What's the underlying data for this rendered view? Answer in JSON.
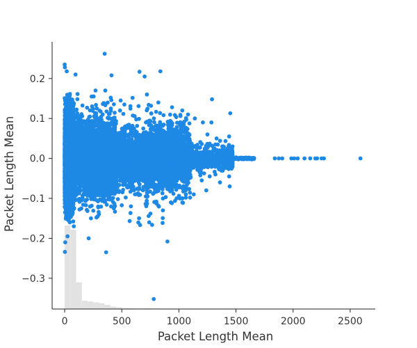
{
  "chart_data": {
    "type": "scatter",
    "title": "",
    "xlabel": "Packet Length Mean",
    "ylabel": "Packet Length Mean",
    "xlim": [
      -110,
      2720
    ],
    "ylim": [
      -0.377,
      0.292
    ],
    "x_ticks": [
      0,
      500,
      1000,
      1500,
      2000,
      2500
    ],
    "x_tick_labels": [
      "0",
      "500",
      "1000",
      "1500",
      "2000",
      "2500"
    ],
    "y_ticks": [
      0.2,
      0.1,
      0.0,
      -0.1,
      -0.2,
      -0.3
    ],
    "y_tick_labels": [
      "0.2",
      "0.1",
      "0.0",
      "−0.1",
      "−0.2",
      "−0.3"
    ],
    "grid": false,
    "legend": "none",
    "point_color": "#1E88E5",
    "histogram_color": "#E2E2E2",
    "histogram": {
      "bin_edges": [
        0,
        50,
        100,
        150,
        200,
        250,
        300,
        350,
        400,
        450,
        500,
        550,
        600,
        650,
        700,
        750,
        800,
        850,
        900,
        950,
        1000,
        1050,
        1100,
        1150,
        1200,
        1250,
        1300,
        1350,
        1400,
        1450,
        1500
      ],
      "relative_heights": [
        1.0,
        0.95,
        0.32,
        0.1,
        0.09,
        0.08,
        0.07,
        0.05,
        0.03,
        0.02,
        0.012,
        0.01,
        0.008,
        0.008,
        0.01,
        0.008,
        0.008,
        0.006,
        0.005,
        0.004,
        0.004,
        0.003,
        0.003,
        0.003,
        0.002,
        0.002,
        0.002,
        0.002,
        0.003,
        0.002
      ]
    },
    "series": [
      {
        "values": [
          [
            0,
            0.235
          ],
          [
            2,
            0.228
          ],
          [
            18,
            0.218
          ],
          [
            95,
            0.21
          ],
          [
            350,
            0.262
          ],
          [
            410,
            0.208
          ],
          [
            655,
            0.217
          ],
          [
            700,
            0.205
          ],
          [
            838,
            0.218
          ],
          [
            270,
            0.17
          ],
          [
            490,
            0.145
          ],
          [
            720,
            0.16
          ],
          [
            820,
            0.14
          ],
          [
            940,
            0.128
          ],
          [
            1030,
            0.12
          ],
          [
            1080,
            0.11
          ],
          [
            1140,
            0.1
          ],
          [
            1210,
            0.09
          ],
          [
            1290,
            0.148
          ],
          [
            1450,
            0.113
          ],
          [
            1285,
            0.09
          ],
          [
            1330,
            0.05
          ],
          [
            1440,
            0.055
          ],
          [
            1470,
            0.03
          ],
          [
            1250,
            0.06
          ],
          [
            1355,
            0.02
          ],
          [
            1380,
            0.03
          ],
          [
            1320,
            0.035
          ],
          [
            1410,
            0.015
          ],
          [
            1460,
            -0.02
          ],
          [
            1405,
            -0.02
          ],
          [
            1270,
            -0.045
          ],
          [
            1320,
            -0.04
          ],
          [
            1440,
            -0.045
          ],
          [
            1445,
            -0.07
          ],
          [
            1360,
            -0.06
          ],
          [
            1240,
            -0.08
          ],
          [
            1200,
            -0.055
          ],
          [
            1130,
            -0.09
          ],
          [
            1060,
            -0.08
          ],
          [
            980,
            -0.1
          ],
          [
            930,
            -0.11
          ],
          [
            860,
            -0.13
          ],
          [
            740,
            -0.16
          ],
          [
            580,
            -0.12
          ],
          [
            430,
            -0.125
          ],
          [
            300,
            -0.14
          ],
          [
            230,
            -0.15
          ],
          [
            210,
            -0.2
          ],
          [
            25,
            -0.195
          ],
          [
            5,
            -0.21
          ],
          [
            2,
            -0.234
          ],
          [
            80,
            -0.17
          ],
          [
            45,
            -0.16
          ],
          [
            363,
            -0.235
          ],
          [
            900,
            -0.208
          ],
          [
            780,
            -0.352
          ],
          [
            1840,
            0.0
          ],
          [
            1875,
            0.0
          ],
          [
            1905,
            0.0
          ],
          [
            1985,
            0.0
          ],
          [
            2010,
            0.0
          ],
          [
            2040,
            0.0
          ],
          [
            2100,
            0.0
          ],
          [
            2150,
            0.0
          ],
          [
            2195,
            0.0
          ],
          [
            2210,
            0.0
          ],
          [
            2250,
            0.0
          ],
          [
            2270,
            0.0
          ],
          [
            2590,
            0.0
          ],
          [
            1540,
            0.0
          ],
          [
            1600,
            0.0
          ],
          [
            1645,
            0.0
          ],
          [
            1520,
            0.0
          ]
        ]
      }
    ]
  }
}
